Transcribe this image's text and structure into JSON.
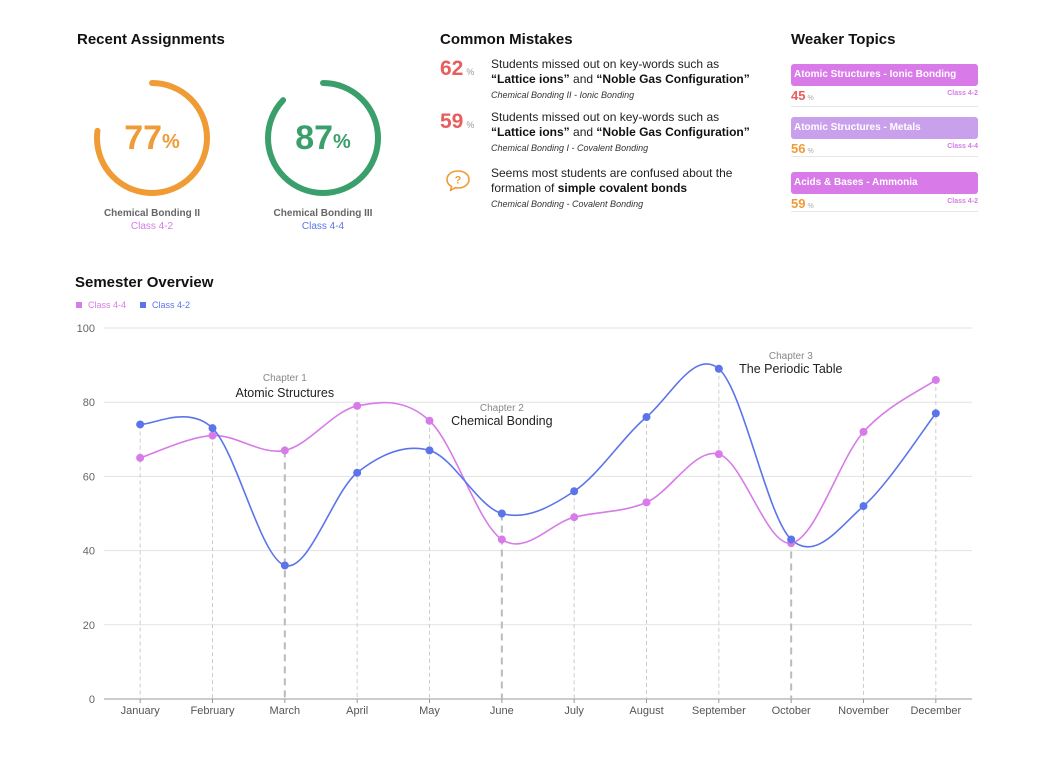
{
  "recent_assignments": {
    "title": "Recent Assignments",
    "items": [
      {
        "value": "77",
        "pct": "%",
        "name": "Chemical Bonding II",
        "class": "Class 4-2",
        "color": "#ef9b36",
        "class_color": "#d77be8",
        "fraction": 0.77
      },
      {
        "value": "87",
        "pct": "%",
        "name": "Chemical Bonding III",
        "class": "Class 4-4",
        "color": "#3a9f6b",
        "class_color": "#5b74ea",
        "fraction": 0.87
      }
    ]
  },
  "common_mistakes": {
    "title": "Common Mistakes",
    "items": [
      {
        "num": "62",
        "pct": "%",
        "text_a": "Students missed out on key-words such as",
        "kw1": "“Lattice ions”",
        "and": "and",
        "kw2": "“Noble Gas Configuration”",
        "source": "Chemical Bonding II - Ionic Bonding"
      },
      {
        "num": "59",
        "pct": "%",
        "text_a": "Students missed out on key-words such as",
        "kw1": "“Lattice ions”",
        "and": "and",
        "kw2": "“Noble Gas Configuration”",
        "source": "Chemical Bonding I - Covalent Bonding"
      }
    ],
    "note": {
      "text_a": "Seems most students are confused about the formation of",
      "kw": "simple covalent bonds",
      "source": "Chemical Bonding - Covalent Bonding",
      "icon": "question-bubble-icon"
    }
  },
  "weaker_topics": {
    "title": "Weaker Topics",
    "items": [
      {
        "label": "Atomic Structures - Ionic Bonding",
        "value": "45",
        "pct": "%",
        "class": "Class 4-2",
        "bar_color": "#d97ae9",
        "value_color": "#e85d5d",
        "class_color": "#d77be8"
      },
      {
        "label": "Atomic Structures - Metals",
        "value": "56",
        "pct": "%",
        "class": "Class 4-4",
        "bar_color": "#c9a0ec",
        "value_color": "#ef9b36",
        "class_color": "#d77be8"
      },
      {
        "label": "Acids & Bases - Ammonia",
        "value": "59",
        "pct": "%",
        "class": "Class 4-2",
        "bar_color": "#d97ae9",
        "value_color": "#ef9b36",
        "class_color": "#d77be8"
      }
    ]
  },
  "semester": {
    "title": "Semester Overview",
    "legend": [
      {
        "name": "Class 4-4",
        "color": "#d77be8"
      },
      {
        "name": "Class 4-2",
        "color": "#5b74ea"
      }
    ]
  },
  "chart_data": {
    "type": "line",
    "title": "Semester Overview",
    "categories": [
      "January",
      "February",
      "March",
      "April",
      "May",
      "June",
      "July",
      "August",
      "September",
      "October",
      "November",
      "December"
    ],
    "series": [
      {
        "name": "Class 4-4",
        "color": "#d77be8",
        "values": [
          65,
          71,
          67,
          79,
          75,
          43,
          49,
          53,
          66,
          42,
          72,
          86
        ]
      },
      {
        "name": "Class 4-2",
        "color": "#5b74ea",
        "values": [
          74,
          73,
          36,
          61,
          67,
          50,
          56,
          76,
          89,
          43,
          52,
          77
        ]
      }
    ],
    "ylim": [
      0,
      100
    ],
    "yticks": [
      0,
      20,
      40,
      60,
      80,
      100
    ],
    "grid": true,
    "legend_position": "top-left",
    "annotations": [
      {
        "chapter": "Chapter 1",
        "label": "Atomic Structures",
        "category": "March"
      },
      {
        "chapter": "Chapter 2",
        "label": "Chemical Bonding",
        "category": "June"
      },
      {
        "chapter": "Chapter 3",
        "label": "The Periodic Table",
        "category": "October"
      }
    ]
  }
}
